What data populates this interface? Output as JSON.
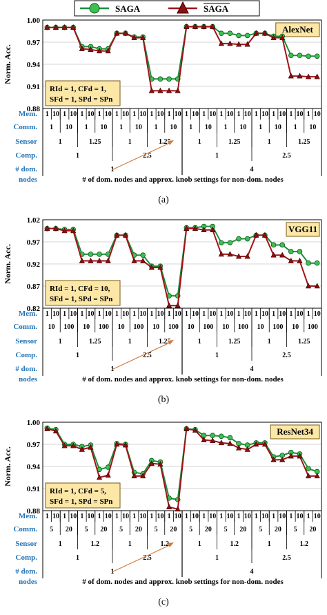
{
  "legend": {
    "items": [
      {
        "name": "SAGA",
        "overline": false,
        "color": "#1a8f3a",
        "marker_color": "#3fbf52",
        "marker": "circle"
      },
      {
        "name": "SAGA",
        "overline": true,
        "color": "#a01418",
        "marker_color": "#8b1010",
        "marker": "triangle"
      }
    ]
  },
  "colors": {
    "row_label": "#1f72b8",
    "box_fill": "#fce7a6",
    "box_border": "#7a5a10",
    "arrow": "#d07a3a"
  },
  "chart_data": [
    {
      "type": "line",
      "title": "AlexNet",
      "caption": "(a)",
      "ylabel": "Norm. Acc.",
      "ylim": [
        0.88,
        1.0
      ],
      "yticks": [
        "1.00",
        "0.97",
        "0.94",
        "0.91",
        "0.88"
      ],
      "settings_box": [
        "RId = 1, CFd = 1,",
        "SFd = 1, SPd = SPn"
      ],
      "series": [
        {
          "name": "SAGA",
          "values": [
            0.99,
            0.99,
            0.99,
            0.99,
            0.964,
            0.964,
            0.961,
            0.961,
            0.982,
            0.982,
            0.977,
            0.977,
            0.92,
            0.92,
            0.92,
            0.92,
            0.991,
            0.991,
            0.991,
            0.991,
            0.982,
            0.982,
            0.979,
            0.979,
            0.982,
            0.982,
            0.978,
            0.978,
            0.952,
            0.952,
            0.951,
            0.951
          ]
        },
        {
          "name": "SAGA-bar",
          "values": [
            0.99,
            0.99,
            0.99,
            0.99,
            0.961,
            0.96,
            0.958,
            0.958,
            0.982,
            0.982,
            0.976,
            0.976,
            0.904,
            0.904,
            0.904,
            0.904,
            0.991,
            0.991,
            0.991,
            0.991,
            0.968,
            0.968,
            0.967,
            0.967,
            0.982,
            0.982,
            0.976,
            0.976,
            0.924,
            0.924,
            0.923,
            0.923
          ]
        }
      ],
      "rows": [
        {
          "label": "Mem.",
          "labels": [
            "1",
            "10",
            "1",
            "10",
            "1",
            "10",
            "1",
            "10",
            "1",
            "10",
            "1",
            "10",
            "1",
            "10",
            "1",
            "10",
            "1",
            "10",
            "1",
            "10",
            "1",
            "10",
            "1",
            "10",
            "1",
            "10",
            "1",
            "10",
            "1",
            "10",
            "1",
            "10"
          ]
        },
        {
          "label": "Comm.",
          "labels": [
            "1",
            "10",
            "1",
            "10",
            "1",
            "10",
            "1",
            "10",
            "1",
            "10",
            "1",
            "10",
            "1",
            "10",
            "1",
            "10"
          ]
        },
        {
          "label": "Sensor",
          "labels": [
            "1",
            "1.25",
            "1",
            "1.25",
            "1",
            "1.25",
            "1",
            "1.25"
          ]
        },
        {
          "label": "Comp.",
          "labels": [
            "1",
            "2.5",
            "1",
            "2.5"
          ]
        },
        {
          "label": "# dom.",
          "labels": [
            "1",
            "4"
          ]
        }
      ],
      "row_last_label": "nodes",
      "xlabel": "# of dom. nodes and approx. knob settings for non-dom. nodes"
    },
    {
      "type": "line",
      "title": "VGG11",
      "caption": "(b)",
      "ylabel": "Norm. Acc.",
      "ylim": [
        0.82,
        1.02
      ],
      "yticks": [
        "1.02",
        "0.97",
        "0.92",
        "0.87",
        "0.82"
      ],
      "settings_box": [
        "RId = 1, CFd = 10,",
        "SFd = 1, SPd = SPn"
      ],
      "series": [
        {
          "name": "SAGA",
          "values": [
            1.0,
            1.0,
            0.998,
            0.998,
            0.942,
            0.942,
            0.942,
            0.942,
            0.985,
            0.985,
            0.94,
            0.94,
            0.915,
            0.915,
            0.848,
            0.848,
            1.002,
            1.002,
            1.005,
            1.005,
            0.968,
            0.968,
            0.977,
            0.977,
            0.985,
            0.985,
            0.963,
            0.963,
            0.948,
            0.948,
            0.922,
            0.922
          ]
        },
        {
          "name": "SAGA-bar",
          "values": [
            1.0,
            1.0,
            0.995,
            0.995,
            0.927,
            0.927,
            0.927,
            0.927,
            0.985,
            0.985,
            0.927,
            0.927,
            0.912,
            0.912,
            0.826,
            0.826,
            1.0,
            1.0,
            0.997,
            0.997,
            0.942,
            0.942,
            0.937,
            0.937,
            0.985,
            0.985,
            0.94,
            0.94,
            0.927,
            0.927,
            0.87,
            0.87
          ]
        }
      ],
      "rows": [
        {
          "label": "Mem.",
          "labels": [
            "1",
            "10",
            "1",
            "10",
            "1",
            "10",
            "1",
            "10",
            "1",
            "10",
            "1",
            "10",
            "1",
            "10",
            "1",
            "10",
            "1",
            "10",
            "1",
            "10",
            "1",
            "10",
            "1",
            "10",
            "1",
            "10",
            "1",
            "10",
            "1",
            "10",
            "1",
            "10"
          ]
        },
        {
          "label": "Comm.",
          "labels": [
            "10",
            "100",
            "10",
            "100",
            "10",
            "100",
            "10",
            "100",
            "10",
            "100",
            "10",
            "100",
            "10",
            "100",
            "10",
            "100"
          ]
        },
        {
          "label": "Sensor",
          "labels": [
            "1",
            "1.25",
            "1",
            "1.25",
            "1",
            "1.25",
            "1",
            "1.25"
          ]
        },
        {
          "label": "Comp.",
          "labels": [
            "1",
            "2.5",
            "1",
            "2.5"
          ]
        },
        {
          "label": "# dom.",
          "labels": [
            "1",
            "4"
          ]
        }
      ],
      "row_last_label": "nodes",
      "xlabel": "# of dom. nodes and approx. knob settings for non-dom. nodes"
    },
    {
      "type": "line",
      "title": "ResNet34",
      "caption": "(c)",
      "ylabel": "Norm. Acc.",
      "ylim": [
        0.88,
        1.0
      ],
      "yticks": [
        "1.00",
        "0.97",
        "0.94",
        "0.91",
        "0.88"
      ],
      "settings_box": [
        "RId = 1, CFd = 5,",
        "SFd = 1, SPd = SPn"
      ],
      "series": [
        {
          "name": "SAGA",
          "values": [
            0.992,
            0.99,
            0.97,
            0.97,
            0.967,
            0.969,
            0.936,
            0.939,
            0.971,
            0.97,
            0.932,
            0.93,
            0.948,
            0.946,
            0.897,
            0.895,
            0.991,
            0.99,
            0.982,
            0.982,
            0.981,
            0.979,
            0.971,
            0.969,
            0.972,
            0.972,
            0.953,
            0.955,
            0.959,
            0.957,
            0.937,
            0.933
          ]
        },
        {
          "name": "SAGA-bar",
          "values": [
            0.991,
            0.988,
            0.968,
            0.968,
            0.963,
            0.966,
            0.925,
            0.928,
            0.97,
            0.969,
            0.927,
            0.927,
            0.944,
            0.943,
            0.885,
            0.882,
            0.991,
            0.989,
            0.976,
            0.975,
            0.972,
            0.971,
            0.965,
            0.963,
            0.97,
            0.97,
            0.949,
            0.949,
            0.954,
            0.954,
            0.927,
            0.927
          ]
        }
      ],
      "rows": [
        {
          "label": "Mem.",
          "labels": [
            "1",
            "10",
            "1",
            "10",
            "1",
            "10",
            "1",
            "10",
            "1",
            "10",
            "1",
            "10",
            "1",
            "10",
            "1",
            "10",
            "1",
            "10",
            "1",
            "10",
            "1",
            "10",
            "1",
            "10",
            "1",
            "10",
            "1",
            "10",
            "1",
            "10",
            "1",
            "10"
          ]
        },
        {
          "label": "Comm.",
          "labels": [
            "5",
            "20",
            "5",
            "20",
            "5",
            "20",
            "5",
            "20",
            "5",
            "20",
            "5",
            "20",
            "5",
            "20",
            "5",
            "20"
          ]
        },
        {
          "label": "Sensor",
          "labels": [
            "1",
            "1.2",
            "1",
            "1.2",
            "1",
            "1.2",
            "1",
            "1.2"
          ]
        },
        {
          "label": "Comp.",
          "labels": [
            "1",
            "2.5",
            "1",
            "2.5"
          ]
        },
        {
          "label": "# dom.",
          "labels": [
            "1",
            "4"
          ]
        }
      ],
      "row_last_label": "nodes",
      "xlabel": "# of dom. nodes and approx. knob settings for non-dom. nodes"
    }
  ]
}
